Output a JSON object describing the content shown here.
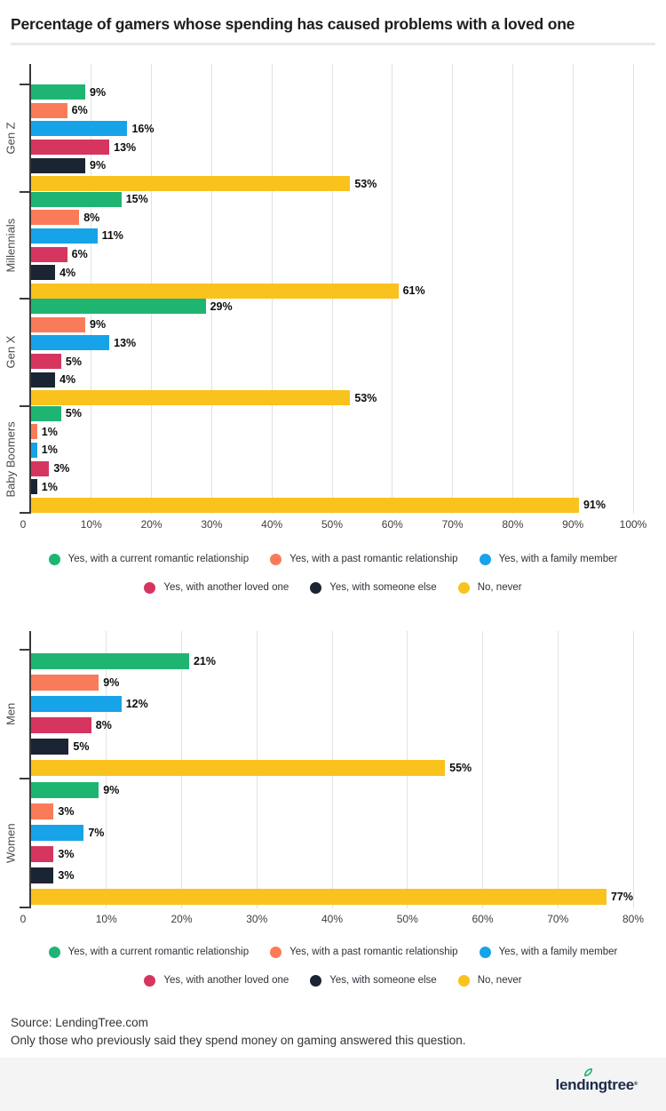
{
  "page": {
    "title": "Percentage of gamers whose spending has caused problems with a loved one",
    "source_line1": "Source: LendingTree.com",
    "source_line2": "Only those who previously said they spend money on gaming answered this question.",
    "footer": {
      "logo_text": "lendingtree",
      "registered": "®"
    }
  },
  "colors": {
    "axis": "#3a3a3a",
    "grid": "#e2e2e2",
    "value_label": "#0d0d0d",
    "footer_bg": "#f4f4f5",
    "logo_navy": "#1d2b49",
    "logo_leaf_green": "#22b573"
  },
  "chart_data": [
    {
      "type": "bar",
      "orientation": "horizontal",
      "categories": [
        "Gen Z",
        "Millennials",
        "Gen X",
        "Baby Boomers"
      ],
      "series": [
        {
          "name": "Yes, with a current romantic relationship",
          "color": "#1EB573",
          "values": [
            9,
            15,
            29,
            5
          ]
        },
        {
          "name": "Yes, with a past romantic relationship",
          "color": "#FA7B59",
          "values": [
            6,
            8,
            9,
            1
          ]
        },
        {
          "name": "Yes, with a family member",
          "color": "#17A3E8",
          "values": [
            16,
            11,
            13,
            1
          ]
        },
        {
          "name": "Yes, with another loved one",
          "color": "#D6355F",
          "values": [
            13,
            6,
            5,
            3
          ]
        },
        {
          "name": "Yes, with someone else",
          "color": "#1A2433",
          "values": [
            9,
            4,
            4,
            1
          ]
        },
        {
          "name": "No, never",
          "color": "#F9C21D",
          "values": [
            53,
            61,
            53,
            91
          ]
        }
      ],
      "xlim": [
        0,
        100
      ],
      "xtick_step": 10,
      "tick_labels": [
        "0",
        "10%",
        "20%",
        "30%",
        "40%",
        "50%",
        "60%",
        "70%",
        "80%",
        "90%",
        "100%"
      ],
      "value_suffix": "%",
      "grid": true,
      "legend_position": "bottom",
      "legend_rows": [
        [
          0,
          1,
          2
        ],
        [
          3,
          4,
          5
        ]
      ]
    },
    {
      "type": "bar",
      "orientation": "horizontal",
      "categories": [
        "Men",
        "Women"
      ],
      "series": [
        {
          "name": "Yes, with a current romantic relationship",
          "color": "#1EB573",
          "values": [
            21,
            9
          ]
        },
        {
          "name": "Yes, with a past romantic relationship",
          "color": "#FA7B59",
          "values": [
            9,
            3
          ]
        },
        {
          "name": "Yes, with a family member",
          "color": "#17A3E8",
          "values": [
            12,
            7
          ]
        },
        {
          "name": "Yes, with another loved one",
          "color": "#D6355F",
          "values": [
            8,
            3
          ]
        },
        {
          "name": "Yes, with someone else",
          "color": "#1A2433",
          "values": [
            5,
            3
          ]
        },
        {
          "name": "No, never",
          "color": "#F9C21D",
          "values": [
            55,
            77
          ]
        }
      ],
      "xlim": [
        0,
        80
      ],
      "xtick_step": 10,
      "tick_labels": [
        "0",
        "10%",
        "20%",
        "30%",
        "40%",
        "50%",
        "60%",
        "70%",
        "80%"
      ],
      "value_suffix": "%",
      "grid": true,
      "legend_position": "bottom",
      "legend_rows": [
        [
          0,
          1,
          2
        ],
        [
          3,
          4,
          5
        ]
      ]
    }
  ]
}
